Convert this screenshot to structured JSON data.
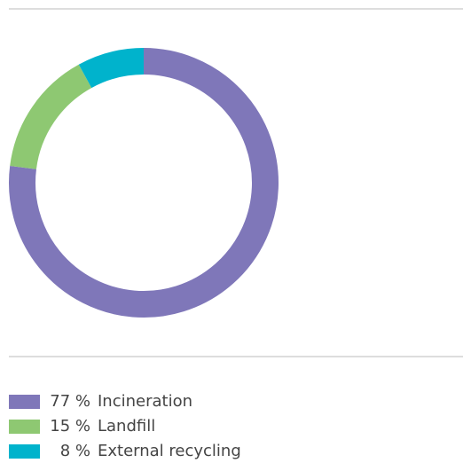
{
  "chart_data": {
    "type": "donut",
    "categories": [
      "Incineration",
      "Landfill",
      "External recycling"
    ],
    "values": [
      77,
      15,
      8
    ],
    "value_labels": [
      "77 %",
      "15 %",
      "8 %"
    ],
    "colors": [
      "#7f77b9",
      "#8ec872",
      "#00b3cc"
    ]
  }
}
